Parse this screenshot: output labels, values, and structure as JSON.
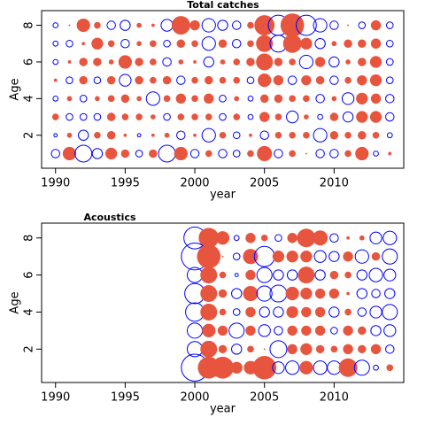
{
  "chart_data": [
    {
      "type": "bubble",
      "title": "Total catches",
      "xlabel": "year",
      "ylabel": "Age",
      "positive_color": "#e8553f",
      "negative_color": "#0000ff",
      "xlim": [
        1989,
        2015
      ],
      "ylim": [
        0.2,
        8.8
      ],
      "xticks": [
        1990,
        1995,
        2000,
        2005,
        2010
      ],
      "yticks": [
        2,
        4,
        6,
        8
      ],
      "x": [
        1990,
        1991,
        1992,
        1993,
        1994,
        1995,
        1996,
        1997,
        1998,
        1999,
        2000,
        2001,
        2002,
        2003,
        2004,
        2005,
        2006,
        2007,
        2008,
        2009,
        2010,
        2011,
        2012,
        2013,
        2014
      ],
      "y": [
        8,
        7,
        6,
        5,
        4,
        3,
        2,
        1
      ],
      "values": [
        [
          -0.3,
          0.1,
          0.8,
          0.4,
          -0.5,
          -0.6,
          0.3,
          0.2,
          -0.7,
          1.1,
          0.6,
          -0.8,
          -0.6,
          -0.5,
          0.4,
          1.2,
          -1.2,
          1.4,
          -1.2,
          -0.8,
          -0.5,
          0.1,
          -0.4,
          0.6,
          -0.4
        ],
        [
          -0.3,
          -0.4,
          0.2,
          0.7,
          0.4,
          -0.5,
          0.3,
          0.4,
          -0.4,
          0.5,
          0.4,
          -0.8,
          0.5,
          -0.5,
          0.4,
          1.0,
          -1.0,
          1.1,
          0.7,
          -0.6,
          0.3,
          0.5,
          0.5,
          0.6,
          -0.4
        ],
        [
          -0.3,
          0.2,
          0.5,
          0.5,
          0.3,
          0.8,
          0.5,
          0.4,
          -0.5,
          0.3,
          0.2,
          -0.6,
          0.3,
          0.4,
          0.5,
          1.0,
          0.5,
          0.4,
          -0.8,
          0.6,
          -0.6,
          0.3,
          0.5,
          0.7,
          -0.4
        ],
        [
          0.2,
          -0.4,
          0.5,
          -0.4,
          0.5,
          -0.7,
          0.5,
          0.4,
          0.5,
          -0.5,
          0.4,
          0.5,
          0.4,
          0.4,
          -0.4,
          0.8,
          0.6,
          -0.5,
          0.6,
          0.5,
          -0.5,
          0.4,
          0.6,
          0.7,
          -0.4
        ],
        [
          -0.3,
          0.3,
          -0.4,
          0.3,
          0.4,
          0.5,
          0.3,
          -0.8,
          0.4,
          0.6,
          0.4,
          0.6,
          -0.4,
          0.3,
          -0.3,
          0.5,
          0.5,
          0.4,
          0.4,
          -0.5,
          0.3,
          -0.7,
          0.7,
          0.6,
          -0.5
        ],
        [
          0.4,
          -0.4,
          -0.4,
          -0.4,
          0.5,
          0.4,
          0.4,
          0.3,
          -0.4,
          0.4,
          0.4,
          0.4,
          -0.4,
          0.4,
          -0.3,
          0.6,
          0.4,
          -0.7,
          0.3,
          -0.3,
          0.5,
          -0.6,
          0.7,
          0.7,
          -0.5
        ],
        [
          -0.2,
          0.3,
          -0.6,
          0.4,
          0.5,
          0.2,
          -0.2,
          0.2,
          0.3,
          -0.5,
          0.2,
          -0.8,
          0.4,
          -0.4,
          0.2,
          -0.5,
          0.4,
          0.4,
          0.4,
          -0.8,
          0.5,
          0.4,
          0.5,
          0.4,
          -0.3
        ],
        [
          -0.5,
          0.8,
          -1.0,
          -0.6,
          0.7,
          0.5,
          -0.4,
          0.5,
          -1.0,
          0.8,
          -0.5,
          0.4,
          -0.5,
          -0.4,
          0.4,
          0.9,
          -0.5,
          0.4,
          0.1,
          -0.5,
          -0.5,
          0.4,
          0.8,
          -0.3,
          0.2
        ]
      ]
    },
    {
      "type": "bubble",
      "title": "Acoustics",
      "xlabel": "year",
      "ylabel": "Age",
      "positive_color": "#e8553f",
      "negative_color": "#0000ff",
      "xlim": [
        1989,
        2015
      ],
      "ylim": [
        0.2,
        8.8
      ],
      "xticks": [
        1990,
        1995,
        2000,
        2005,
        2010
      ],
      "yticks": [
        2,
        4,
        6,
        8
      ],
      "x": [
        2000,
        2001,
        2002,
        2003,
        2004,
        2005,
        2006,
        2007,
        2008,
        2009,
        2010,
        2011,
        2012,
        2013,
        2014
      ],
      "y": [
        8,
        7,
        6,
        5,
        4,
        3,
        2,
        1
      ],
      "values": [
        [
          -1.3,
          1.2,
          0.8,
          -0.3,
          0.6,
          0.4,
          -0.4,
          0.6,
          1.1,
          0.9,
          -0.5,
          0.2,
          0.3,
          -0.7,
          -0.8
        ],
        [
          -1.6,
          1.4,
          0.1,
          -0.4,
          0.9,
          -1.2,
          0.7,
          0.7,
          0.7,
          -0.7,
          -0.6,
          0.6,
          -0.8,
          0.5,
          -0.9
        ],
        [
          -0.9,
          1.0,
          0.4,
          -0.2,
          0.6,
          -0.9,
          -0.6,
          -0.6,
          1.0,
          -0.6,
          0.5,
          0.4,
          -0.6,
          -0.8,
          -0.7
        ],
        [
          -1.2,
          1.0,
          0.5,
          -0.6,
          0.9,
          -0.9,
          -1.0,
          0.8,
          0.7,
          0.6,
          0.6,
          0.2,
          -0.6,
          -0.5,
          -0.6
        ],
        [
          -1.1,
          1.0,
          0.4,
          -0.4,
          0.6,
          -0.6,
          -0.6,
          0.7,
          0.6,
          0.6,
          -0.6,
          0.4,
          -0.5,
          -0.7,
          -0.9
        ],
        [
          -0.9,
          0.8,
          0.6,
          -0.9,
          0.6,
          -0.7,
          -0.5,
          0.6,
          0.6,
          0.6,
          -0.4,
          0.6,
          0.5,
          -0.6,
          -0.7
        ],
        [
          -0.9,
          1.0,
          0.5,
          -0.6,
          0.4,
          0.1,
          -1.0,
          0.6,
          0.7,
          0.5,
          0.4,
          0.6,
          0.5,
          0.6,
          -0.5
        ],
        [
          -1.6,
          1.3,
          1.3,
          0.7,
          0.8,
          1.4,
          -0.7,
          -0.8,
          0.8,
          -0.8,
          -0.8,
          1.1,
          -0.9,
          -0.3,
          0.4
        ]
      ]
    }
  ]
}
